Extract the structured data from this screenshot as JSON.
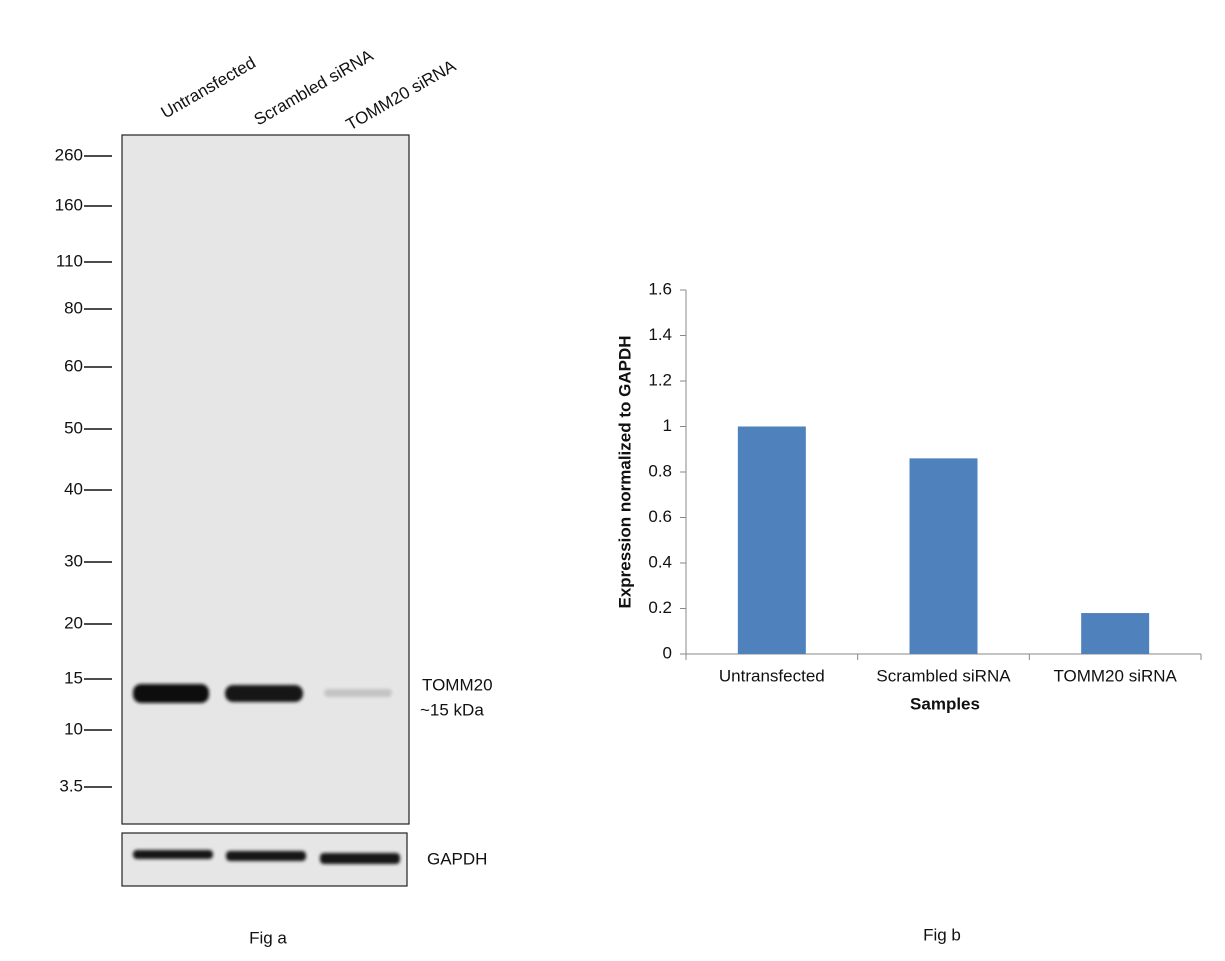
{
  "blot": {
    "lanes": [
      "Untransfected",
      "Scrambled siRNA",
      "TOMM20 siRNA"
    ],
    "markers": [
      "260",
      "160",
      "110",
      "80",
      "60",
      "50",
      "40",
      "30",
      "20",
      "15",
      "10",
      "3.5"
    ],
    "band_label": "TOMM20",
    "band_size": "~15 kDa",
    "loading_control": "GAPDH",
    "caption": "Fig a"
  },
  "chart_data": {
    "type": "bar",
    "caption": "Fig b",
    "x_label": "Samples",
    "y_label": "Expression normalized to GAPDH",
    "categories": [
      "Untransfected",
      "Scrambled siRNA",
      "TOMM20 siRNA"
    ],
    "values": [
      1,
      0.86,
      0.18
    ],
    "color": "#4f81bd",
    "ylim": [
      0,
      1.6
    ],
    "yticks": [
      0,
      0.2,
      0.4,
      0.6,
      0.8,
      1,
      1.2,
      1.4,
      1.6
    ]
  }
}
